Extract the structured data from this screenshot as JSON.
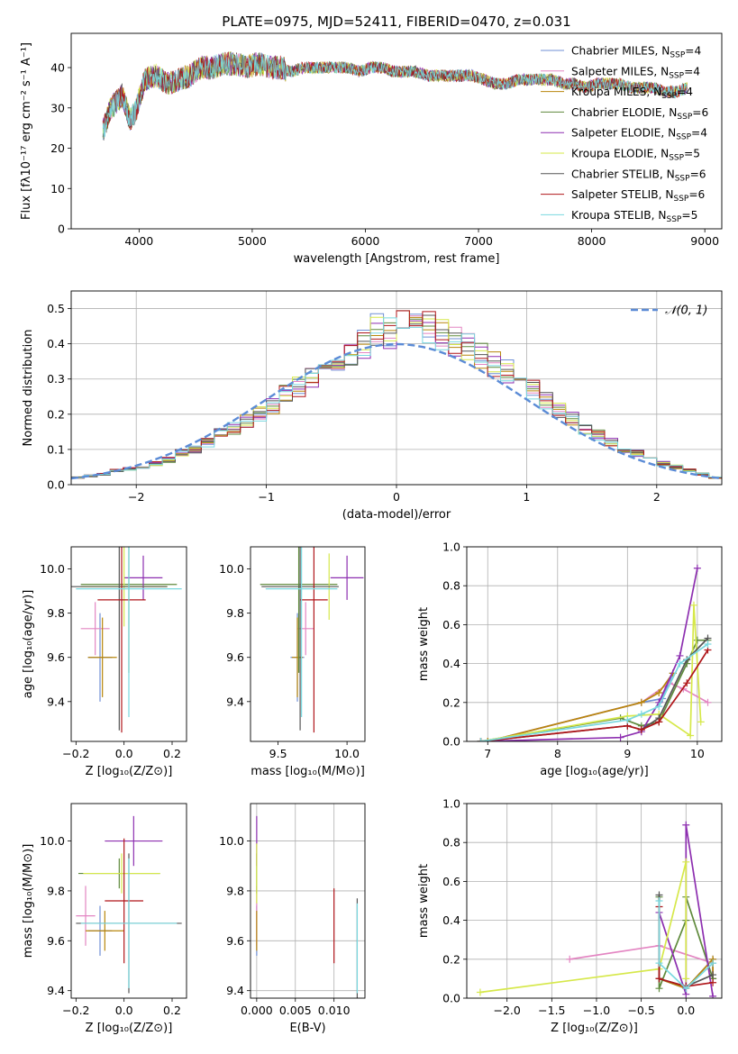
{
  "colors": [
    "#6f8fd6",
    "#e385c2",
    "#b8860b",
    "#5f8a3c",
    "#8d2fb0",
    "#d6e84a",
    "#555555",
    "#b0161a",
    "#79d8df"
  ],
  "chart_data": [
    {
      "id": "spectrum",
      "type": "line",
      "title": "PLATE=0975, MJD=52411, FIBERID=0470, z=0.031",
      "xlabel": "wavelength [Angstrom, rest frame]",
      "ylabel": "Flux [fλ10⁻¹⁷ erg cm⁻² s⁻¹ A⁻¹]",
      "xlim": [
        3400,
        9150
      ],
      "ylim": [
        0,
        48.5
      ],
      "xticks": [
        4000,
        5000,
        6000,
        7000,
        8000,
        9000
      ],
      "yticks": [
        0,
        10,
        20,
        30,
        40
      ],
      "x": [
        3680,
        3750,
        3850,
        3920,
        3970,
        4050,
        4150,
        4250,
        4350,
        4450,
        4550,
        4650,
        4750,
        4850,
        4950,
        5050,
        5150,
        5250,
        5350,
        5450,
        5550,
        5650,
        5750,
        5850,
        5950,
        6050,
        6150,
        6250,
        6350,
        6450,
        6550,
        6650,
        6750,
        6850,
        6950,
        7050,
        7150,
        7250,
        7350,
        7450,
        7550,
        7650,
        7750,
        7850,
        7950,
        8050,
        8150,
        8250,
        8350,
        8450,
        8550,
        8650,
        8750,
        8850
      ],
      "base_values": [
        24,
        30,
        33,
        27,
        29,
        37,
        38,
        36,
        37,
        38,
        40,
        40,
        41,
        41,
        40,
        41,
        40,
        40,
        39,
        40,
        40,
        40,
        40,
        40,
        39,
        40,
        40,
        39,
        39,
        39,
        38,
        38,
        38,
        38,
        38,
        37,
        36,
        36,
        37,
        37,
        37,
        37,
        36,
        36,
        35,
        36,
        36,
        36,
        35,
        35,
        35,
        34,
        34,
        35
      ],
      "legend_loc": "upper right",
      "series": [
        {
          "name": "Chabrier MILES, N",
          "sub": "SSP",
          "eq": "=4",
          "color_index": 0
        },
        {
          "name": "Salpeter MILES, N",
          "sub": "SSP",
          "eq": "=4",
          "color_index": 1
        },
        {
          "name": "Kroupa MILES, N",
          "sub": "SSP",
          "eq": "=4",
          "color_index": 2
        },
        {
          "name": "Chabrier ELODIE, N",
          "sub": "SSP",
          "eq": "=6",
          "color_index": 3
        },
        {
          "name": "Salpeter ELODIE, N",
          "sub": "SSP",
          "eq": "=4",
          "color_index": 4
        },
        {
          "name": "Kroupa ELODIE, N",
          "sub": "SSP",
          "eq": "=5",
          "color_index": 5
        },
        {
          "name": "Chabrier STELIB, N",
          "sub": "SSP",
          "eq": "=6",
          "color_index": 6
        },
        {
          "name": "Salpeter STELIB, N",
          "sub": "SSP",
          "eq": "=6",
          "color_index": 7
        },
        {
          "name": "Kroupa STELIB, N",
          "sub": "SSP",
          "eq": "=5",
          "color_index": 8
        }
      ]
    },
    {
      "id": "residuals",
      "type": "line",
      "xlabel": "(data-model)/error",
      "ylabel": "Normed distribution",
      "xlim": [
        -2.5,
        2.5
      ],
      "ylim": [
        0,
        0.55
      ],
      "xticks": [
        -2,
        -1,
        0,
        1,
        2
      ],
      "yticks": [
        0.0,
        0.1,
        0.2,
        0.3,
        0.4,
        0.5
      ],
      "grid": true,
      "bin_edges": [
        -2.5,
        -2.4,
        -2.3,
        -2.2,
        -2.1,
        -2.0,
        -1.9,
        -1.8,
        -1.7,
        -1.6,
        -1.5,
        -1.4,
        -1.3,
        -1.2,
        -1.1,
        -1.0,
        -0.9,
        -0.8,
        -0.7,
        -0.6,
        -0.5,
        -0.4,
        -0.3,
        -0.2,
        -0.1,
        0.0,
        0.1,
        0.2,
        0.3,
        0.4,
        0.5,
        0.6,
        0.7,
        0.8,
        0.9,
        1.0,
        1.1,
        1.2,
        1.3,
        1.4,
        1.5,
        1.6,
        1.7,
        1.8,
        1.9,
        2.0,
        2.1,
        2.2,
        2.3,
        2.4,
        2.5
      ],
      "hist_base": [
        0.02,
        0.025,
        0.03,
        0.04,
        0.045,
        0.05,
        0.06,
        0.07,
        0.09,
        0.1,
        0.12,
        0.15,
        0.16,
        0.18,
        0.2,
        0.22,
        0.26,
        0.28,
        0.3,
        0.33,
        0.35,
        0.38,
        0.4,
        0.44,
        0.43,
        0.45,
        0.44,
        0.45,
        0.43,
        0.41,
        0.39,
        0.37,
        0.34,
        0.32,
        0.3,
        0.27,
        0.24,
        0.21,
        0.19,
        0.16,
        0.14,
        0.12,
        0.1,
        0.09,
        0.08,
        0.06,
        0.05,
        0.04,
        0.03,
        0.02
      ],
      "gaussian_label": "𝒩(0, 1)",
      "gaussian_color": "#5b8bd6",
      "legend_loc": "upper right"
    },
    {
      "id": "age-vs-Z",
      "type": "scatter",
      "xlabel": "Z [log₁₀(Z/Z⊙)]",
      "ylabel": "age  [log₁₀(age/yr)]",
      "xlim": [
        -0.22,
        0.26
      ],
      "ylim": [
        9.22,
        10.1
      ],
      "xticks": [
        -0.2,
        0.0,
        0.2
      ],
      "yticks": [
        9.4,
        9.6,
        9.8,
        10.0
      ],
      "points": [
        {
          "c": 0,
          "x": -0.1,
          "y": 9.6,
          "xerr": 0.05,
          "yerr": 0.2
        },
        {
          "c": 1,
          "x": -0.12,
          "y": 9.73,
          "xerr": 0.06,
          "yerr": 0.12
        },
        {
          "c": 2,
          "x": -0.09,
          "y": 9.6,
          "xerr": 0.06,
          "yerr": 0.18
        },
        {
          "c": 3,
          "x": 0.02,
          "y": 9.93,
          "xerr": 0.2,
          "yerr": 0.4
        },
        {
          "c": 4,
          "x": 0.08,
          "y": 9.96,
          "xerr": 0.08,
          "yerr": 0.1
        },
        {
          "c": 5,
          "x": 0.0,
          "y": 9.92,
          "xerr": 0.18,
          "yerr": 0.18
        },
        {
          "c": 6,
          "x": -0.02,
          "y": 9.92,
          "xerr": 0.2,
          "yerr": 0.65
        },
        {
          "c": 7,
          "x": -0.01,
          "y": 9.86,
          "xerr": 0.1,
          "yerr": 0.6
        },
        {
          "c": 8,
          "x": 0.02,
          "y": 9.91,
          "xerr": 0.22,
          "yerr": 0.58
        }
      ]
    },
    {
      "id": "age-vs-mass",
      "type": "scatter",
      "xlabel": "mass [log₁₀(M/M⊙)]",
      "xlim": [
        9.3,
        10.13
      ],
      "ylim": [
        9.22,
        10.1
      ],
      "xticks": [
        9.5,
        10.0
      ],
      "yticks": [
        9.4,
        9.6,
        9.8,
        10.0
      ],
      "points": [
        {
          "c": 0,
          "x": 9.64,
          "y": 9.6,
          "xerr": 0.05,
          "yerr": 0.2
        },
        {
          "c": 1,
          "x": 9.7,
          "y": 9.73,
          "xerr": 0.06,
          "yerr": 0.12
        },
        {
          "c": 2,
          "x": 9.64,
          "y": 9.6,
          "xerr": 0.04,
          "yerr": 0.18
        },
        {
          "c": 3,
          "x": 9.65,
          "y": 9.93,
          "xerr": 0.28,
          "yerr": 0.4
        },
        {
          "c": 4,
          "x": 10.0,
          "y": 9.96,
          "xerr": 0.12,
          "yerr": 0.1
        },
        {
          "c": 5,
          "x": 9.87,
          "y": 9.92,
          "xerr": 0.0,
          "yerr": 0.15
        },
        {
          "c": 6,
          "x": 9.66,
          "y": 9.92,
          "xerr": 0.28,
          "yerr": 0.65
        },
        {
          "c": 7,
          "x": 9.76,
          "y": 9.86,
          "xerr": 0.1,
          "yerr": 0.6
        },
        {
          "c": 8,
          "x": 9.67,
          "y": 9.91,
          "xerr": 0.26,
          "yerr": 0.58
        }
      ]
    },
    {
      "id": "massweight-vs-age",
      "type": "line",
      "xlabel": "age  [log₁₀(age/yr)]",
      "ylabel": "mass weight",
      "xlim": [
        6.7,
        10.35
      ],
      "ylim": [
        0,
        1.0
      ],
      "xticks": [
        7,
        8,
        9,
        10
      ],
      "yticks": [
        0.0,
        0.2,
        0.4,
        0.6,
        0.8,
        1.0
      ],
      "grid": true,
      "series": [
        {
          "c": 0,
          "x": [
            7.0,
            9.2,
            9.5,
            9.65
          ],
          "y": [
            0.0,
            0.2,
            0.22,
            0.35
          ]
        },
        {
          "c": 1,
          "x": [
            7.0,
            9.2,
            9.6,
            9.8,
            10.15
          ],
          "y": [
            0.0,
            0.2,
            0.3,
            0.27,
            0.2
          ]
        },
        {
          "c": 2,
          "x": [
            7.0,
            9.2,
            9.45,
            9.65
          ],
          "y": [
            0.0,
            0.2,
            0.25,
            0.35
          ]
        },
        {
          "c": 3,
          "x": [
            6.9,
            8.9,
            9.2,
            9.45,
            9.85,
            10.0,
            10.15
          ],
          "y": [
            0.0,
            0.12,
            0.08,
            0.1,
            0.4,
            0.52,
            0.52
          ]
        },
        {
          "c": 4,
          "x": [
            6.9,
            8.9,
            9.2,
            9.45,
            9.75,
            10.0
          ],
          "y": [
            0.0,
            0.02,
            0.05,
            0.2,
            0.44,
            0.89
          ]
        },
        {
          "c": 5,
          "x": [
            6.9,
            9.0,
            9.45,
            9.9,
            9.95,
            10.05
          ],
          "y": [
            0.0,
            0.13,
            0.14,
            0.03,
            0.7,
            0.1
          ]
        },
        {
          "c": 6,
          "x": [
            6.9,
            9.0,
            9.2,
            9.45,
            9.85,
            10.15
          ],
          "y": [
            0.0,
            0.08,
            0.06,
            0.12,
            0.42,
            0.53
          ]
        },
        {
          "c": 7,
          "x": [
            6.9,
            9.0,
            9.2,
            9.45,
            9.85,
            10.15
          ],
          "y": [
            0.0,
            0.08,
            0.06,
            0.1,
            0.3,
            0.47
          ]
        },
        {
          "c": 8,
          "x": [
            6.9,
            9.0,
            9.2,
            9.45,
            9.75,
            10.15
          ],
          "y": [
            0.0,
            0.11,
            0.14,
            0.18,
            0.4,
            0.5
          ]
        }
      ]
    },
    {
      "id": "mass-vs-Z",
      "type": "scatter",
      "xlabel": "Z [log₁₀(Z/Z⊙)]",
      "ylabel": "mass [log₁₀(M/M⊙)]",
      "xlim": [
        -0.22,
        0.26
      ],
      "ylim": [
        9.37,
        10.15
      ],
      "xticks": [
        -0.2,
        0.0,
        0.2
      ],
      "yticks": [
        9.4,
        9.6,
        9.8,
        10.0
      ],
      "points": [
        {
          "c": 0,
          "x": -0.1,
          "y": 9.64,
          "xerr": 0.05,
          "yerr": 0.1
        },
        {
          "c": 1,
          "x": -0.16,
          "y": 9.7,
          "xerr": 0.04,
          "yerr": 0.12
        },
        {
          "c": 2,
          "x": -0.08,
          "y": 9.64,
          "xerr": 0.08,
          "yerr": 0.08
        },
        {
          "c": 3,
          "x": -0.02,
          "y": 9.87,
          "xerr": 0.17,
          "yerr": 0.06
        },
        {
          "c": 4,
          "x": 0.04,
          "y": 10.0,
          "xerr": 0.12,
          "yerr": 0.1
        },
        {
          "c": 5,
          "x": -0.01,
          "y": 9.87,
          "xerr": 0.16,
          "yerr": 0.08
        },
        {
          "c": 6,
          "x": 0.02,
          "y": 9.67,
          "xerr": 0.22,
          "yerr": 0.28
        },
        {
          "c": 7,
          "x": 0.0,
          "y": 9.76,
          "xerr": 0.08,
          "yerr": 0.25
        },
        {
          "c": 8,
          "x": 0.02,
          "y": 9.67,
          "xerr": 0.2,
          "yerr": 0.26
        }
      ]
    },
    {
      "id": "mass-vs-ebv",
      "type": "scatter",
      "xlabel": "E(B-V)",
      "xlim": [
        -0.0008,
        0.014
      ],
      "ylim": [
        9.37,
        10.15
      ],
      "xticks": [
        0.0,
        0.005,
        0.01
      ],
      "xticklabels": [
        "0.000",
        "0.005",
        "0.010"
      ],
      "yticks": [
        9.4,
        9.6,
        9.8,
        10.0
      ],
      "grid": true,
      "points": [
        {
          "c": 0,
          "x": 0.0,
          "y": 9.64,
          "xerr": 0,
          "yerr": 0.1
        },
        {
          "c": 1,
          "x": 0.0,
          "y": 9.7,
          "xerr": 0,
          "yerr": 0.12
        },
        {
          "c": 2,
          "x": 0.0,
          "y": 9.64,
          "xerr": 0,
          "yerr": 0.08
        },
        {
          "c": 3,
          "x": 0.0,
          "y": 9.87,
          "xerr": 0,
          "yerr": 0.08
        },
        {
          "c": 4,
          "x": 0.0,
          "y": 10.0,
          "xerr": 0,
          "yerr": 0.1
        },
        {
          "c": 5,
          "x": 0.0,
          "y": 9.87,
          "xerr": 0,
          "yerr": 0.12
        },
        {
          "c": 6,
          "x": 0.013,
          "y": 9.57,
          "xerr": 0,
          "yerr": 0.2
        },
        {
          "c": 7,
          "x": 0.01,
          "y": 9.66,
          "xerr": 0,
          "yerr": 0.15
        },
        {
          "c": 8,
          "x": 0.013,
          "y": 9.57,
          "xerr": 0,
          "yerr": 0.18
        }
      ]
    },
    {
      "id": "massweight-vs-Z",
      "type": "line",
      "xlabel": "Z [log₁₀(Z/Z⊙)]",
      "ylabel": "mass weight",
      "xlim": [
        -2.45,
        0.4
      ],
      "ylim": [
        0,
        1.0
      ],
      "xticks": [
        -2.0,
        -1.5,
        -1.0,
        -0.5,
        0.0
      ],
      "yticks": [
        0.0,
        0.2,
        0.4,
        0.6,
        0.8,
        1.0
      ],
      "grid": true,
      "series": [
        {
          "c": 0,
          "x": [
            -0.3,
            0.0,
            0.3,
            0.3
          ],
          "y": [
            0.1,
            0.05,
            0.2,
            0.1
          ]
        },
        {
          "c": 1,
          "x": [
            -1.3,
            -0.3,
            0.3,
            0.3
          ],
          "y": [
            0.2,
            0.27,
            0.18,
            0.1
          ]
        },
        {
          "c": 2,
          "x": [
            -0.3,
            0.0,
            0.3,
            0.3
          ],
          "y": [
            0.1,
            0.05,
            0.2,
            0.1
          ]
        },
        {
          "c": 3,
          "x": [
            -0.3,
            -0.3,
            0.0,
            0.0,
            0.3
          ],
          "y": [
            0.52,
            0.05,
            0.4,
            0.52,
            0.1
          ]
        },
        {
          "c": 4,
          "x": [
            -0.3,
            0.0,
            0.0,
            0.3
          ],
          "y": [
            0.44,
            0.02,
            0.89,
            0.01
          ]
        },
        {
          "c": 5,
          "x": [
            -2.3,
            -0.3,
            0.0,
            0.0
          ],
          "y": [
            0.03,
            0.15,
            0.7,
            0.1
          ]
        },
        {
          "c": 6,
          "x": [
            -0.3,
            -0.3,
            0.0,
            0.3
          ],
          "y": [
            0.53,
            0.1,
            0.06,
            0.12
          ]
        },
        {
          "c": 7,
          "x": [
            -0.3,
            -0.3,
            0.0,
            0.3
          ],
          "y": [
            0.47,
            0.1,
            0.06,
            0.08
          ]
        },
        {
          "c": 8,
          "x": [
            -0.3,
            -0.3,
            0.0,
            0.3
          ],
          "y": [
            0.5,
            0.18,
            0.05,
            0.18
          ]
        }
      ]
    }
  ]
}
